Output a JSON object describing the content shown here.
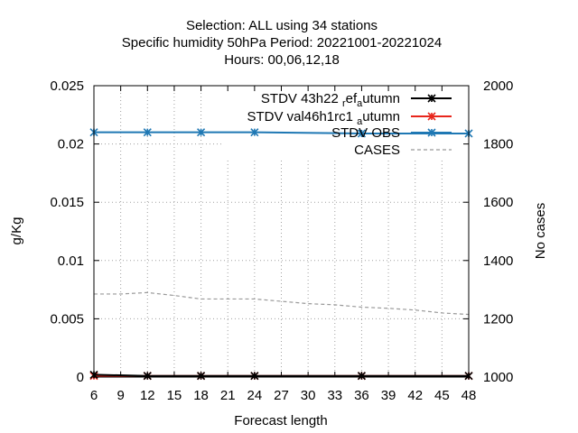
{
  "chart_data": {
    "type": "line",
    "title_lines": [
      "Selection: ALL using    34 stations",
      "Specific humidity 50hPa   Period: 20221001-20221024",
      "Hours:  00,06,12,18"
    ],
    "xlabel": "Forecast length",
    "ylabel": "g/Kg",
    "y2label": "No cases",
    "x_ticks": [
      6,
      9,
      12,
      15,
      18,
      21,
      24,
      27,
      30,
      33,
      36,
      39,
      42,
      45,
      48
    ],
    "xlim": [
      6,
      48
    ],
    "ylim": [
      0,
      0.025
    ],
    "y_ticks": [
      "0",
      "0.005",
      "0.01",
      "0.015",
      "0.02",
      "0.025"
    ],
    "y_tick_values": [
      0,
      0.005,
      0.01,
      0.015,
      0.02,
      0.025
    ],
    "y2lim": [
      1000,
      2000
    ],
    "y2_ticks": [
      1000,
      1200,
      1400,
      1600,
      1800,
      2000
    ],
    "grid": true,
    "legend_position": "top-right",
    "series": [
      {
        "name": "STDV 43h22_ref_autumn",
        "legend_main": "STDV 43h22",
        "legend_parts": [
          {
            "text": "r",
            "sub": true
          },
          {
            "text": "ef",
            "sub": false
          },
          {
            "text": "a",
            "sub": true
          },
          {
            "text": "utumn",
            "sub": false
          }
        ],
        "color": "#000000",
        "axis": "y",
        "x": [
          6,
          12,
          18,
          24,
          36,
          48
        ],
        "y": [
          0.0002,
          0.0001,
          0.0001,
          0.0001,
          0.0001,
          0.0001
        ]
      },
      {
        "name": "STDV val46h1rc1_autumn",
        "legend_main": "STDV val46h1rc1",
        "legend_parts": [
          {
            "text": "a",
            "sub": true
          },
          {
            "text": "utumn",
            "sub": false
          }
        ],
        "color": "#e8261c",
        "axis": "y",
        "x": [
          6,
          12,
          18,
          24,
          36,
          48
        ],
        "y": [
          0.0001,
          0.0001,
          0.0001,
          0.0001,
          0.0001,
          0.0001
        ]
      },
      {
        "name": "STDV OBS",
        "legend_main": "STDV OBS",
        "legend_parts": [],
        "color": "#1f78b4",
        "axis": "y",
        "x": [
          6,
          12,
          18,
          24,
          36,
          48
        ],
        "y": [
          0.021,
          0.021,
          0.021,
          0.021,
          0.0209,
          0.0209
        ]
      },
      {
        "name": "CASES",
        "legend_main": "CASES",
        "legend_parts": [],
        "color": "#999999",
        "axis": "y2",
        "dashed": true,
        "x": [
          6,
          9,
          12,
          15,
          18,
          21,
          24,
          27,
          30,
          33,
          36,
          39,
          42,
          45,
          48
        ],
        "y": [
          1285,
          1285,
          1290,
          1280,
          1268,
          1268,
          1268,
          1260,
          1252,
          1248,
          1240,
          1236,
          1230,
          1220,
          1215
        ]
      }
    ]
  }
}
